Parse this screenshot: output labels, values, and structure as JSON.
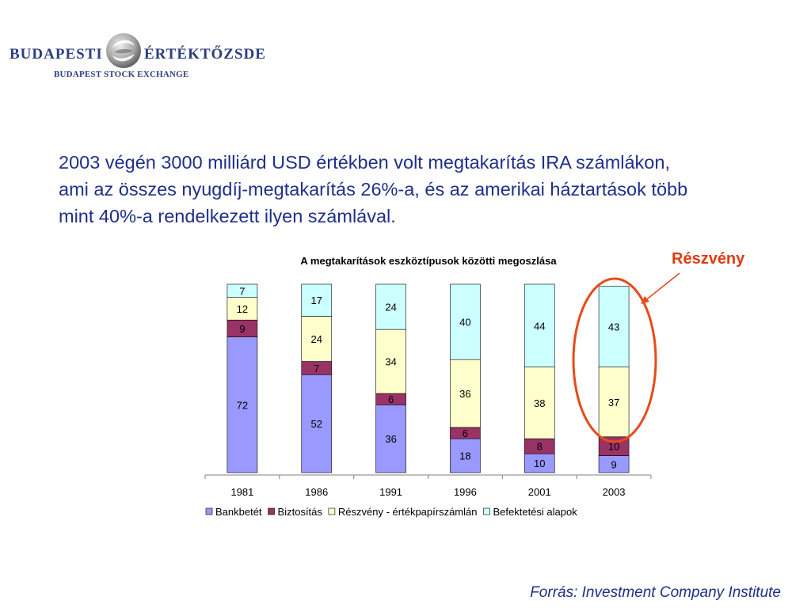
{
  "logo": {
    "left": "BUDAPESTI",
    "right": "ÉRTÉKTŐZSDE",
    "subtitle": "BUDAPEST STOCK EXCHANGE"
  },
  "intro_text": "2003 végén 3000 milliárd USD értékben volt megtakarítás IRA számlákon, ami az összes nyugdíj-megtakarítás 26%-a, és az amerikai háztartások több mint 40%-a rendelkezett ilyen számlával.",
  "callout": {
    "label": "Részvény",
    "color": "#e03a10"
  },
  "source": "Forrás: Investment Company Institute",
  "chart_data": {
    "type": "bar",
    "stacked": true,
    "title": "A megtakarítások eszköztípusok közötti megoszlása",
    "categories": [
      "1981",
      "1986",
      "1991",
      "1996",
      "2001",
      "2003"
    ],
    "series": [
      {
        "name": "Bankbetét",
        "color": "#9999ff",
        "values": [
          72,
          52,
          36,
          18,
          10,
          9
        ]
      },
      {
        "name": "Biztosítás",
        "color": "#993366",
        "values": [
          9,
          7,
          6,
          6,
          8,
          10
        ]
      },
      {
        "name": "Részvény - értékpapírszámlán",
        "color": "#ffffcc",
        "values": [
          12,
          24,
          34,
          36,
          38,
          37
        ]
      },
      {
        "name": "Befektetési alapok",
        "color": "#ccffff",
        "values": [
          7,
          17,
          24,
          40,
          44,
          43
        ]
      }
    ],
    "ylim": [
      0,
      100
    ],
    "legend": "bottom",
    "grid": false,
    "highlight_category": "2003"
  }
}
